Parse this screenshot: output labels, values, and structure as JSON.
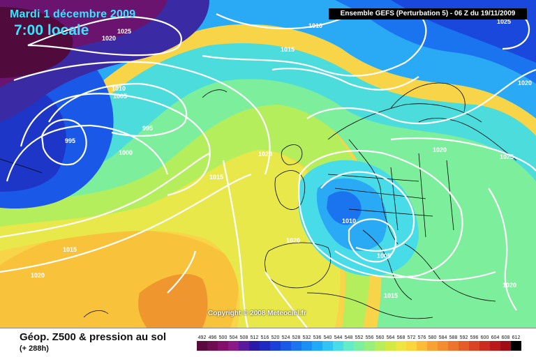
{
  "header": {
    "date_label": "Mardi 1 décembre 2009",
    "time_label": "7:00 locale",
    "run_label": "Ensemble GEFS (Perturbation 5)  -  06 Z du 19/11/2009"
  },
  "footer": {
    "title": "Géop. Z500 & pression au sol",
    "subtitle": "(+ 288h)",
    "copyright": "Copyright © 2008 Meteociel.fr"
  },
  "scale": {
    "values": [
      "492",
      "496",
      "500",
      "504",
      "508",
      "512",
      "516",
      "520",
      "524",
      "528",
      "532",
      "536",
      "540",
      "544",
      "548",
      "552",
      "556",
      "560",
      "564",
      "568",
      "572",
      "576",
      "580",
      "584",
      "588",
      "592",
      "596",
      "600",
      "604",
      "608",
      "612"
    ],
    "colors": [
      "#5a0a3c",
      "#6e0e50",
      "#820f6a",
      "#8a1a86",
      "#5a1a9e",
      "#2a1aa8",
      "#1e2ac0",
      "#1a40d8",
      "#1a58e8",
      "#1a74f0",
      "#1a90f4",
      "#20aaf6",
      "#30c4f4",
      "#48dce8",
      "#64ecc8",
      "#7cf0a0",
      "#98f07c",
      "#b6ee5c",
      "#d4ea44",
      "#f0e440",
      "#fcd43c",
      "#fcbc38",
      "#f8a234",
      "#f48c30",
      "#ec742c",
      "#e45c28",
      "#d84424",
      "#cc2c20",
      "#b81a1c",
      "#a00c14",
      "#000000"
    ]
  },
  "isobars": [
    "1025",
    "1020",
    "1010",
    "1015",
    "1025",
    "1010",
    "1005",
    "995",
    "995",
    "1000",
    "1020",
    "1015",
    "1020",
    "1025",
    "1010",
    "1020",
    "1005",
    "1015",
    "1020",
    "1015",
    "1020",
    "1020"
  ],
  "colors": {
    "title": "#35e6ff",
    "isobar": "#ffffff",
    "coast": "#000000"
  }
}
